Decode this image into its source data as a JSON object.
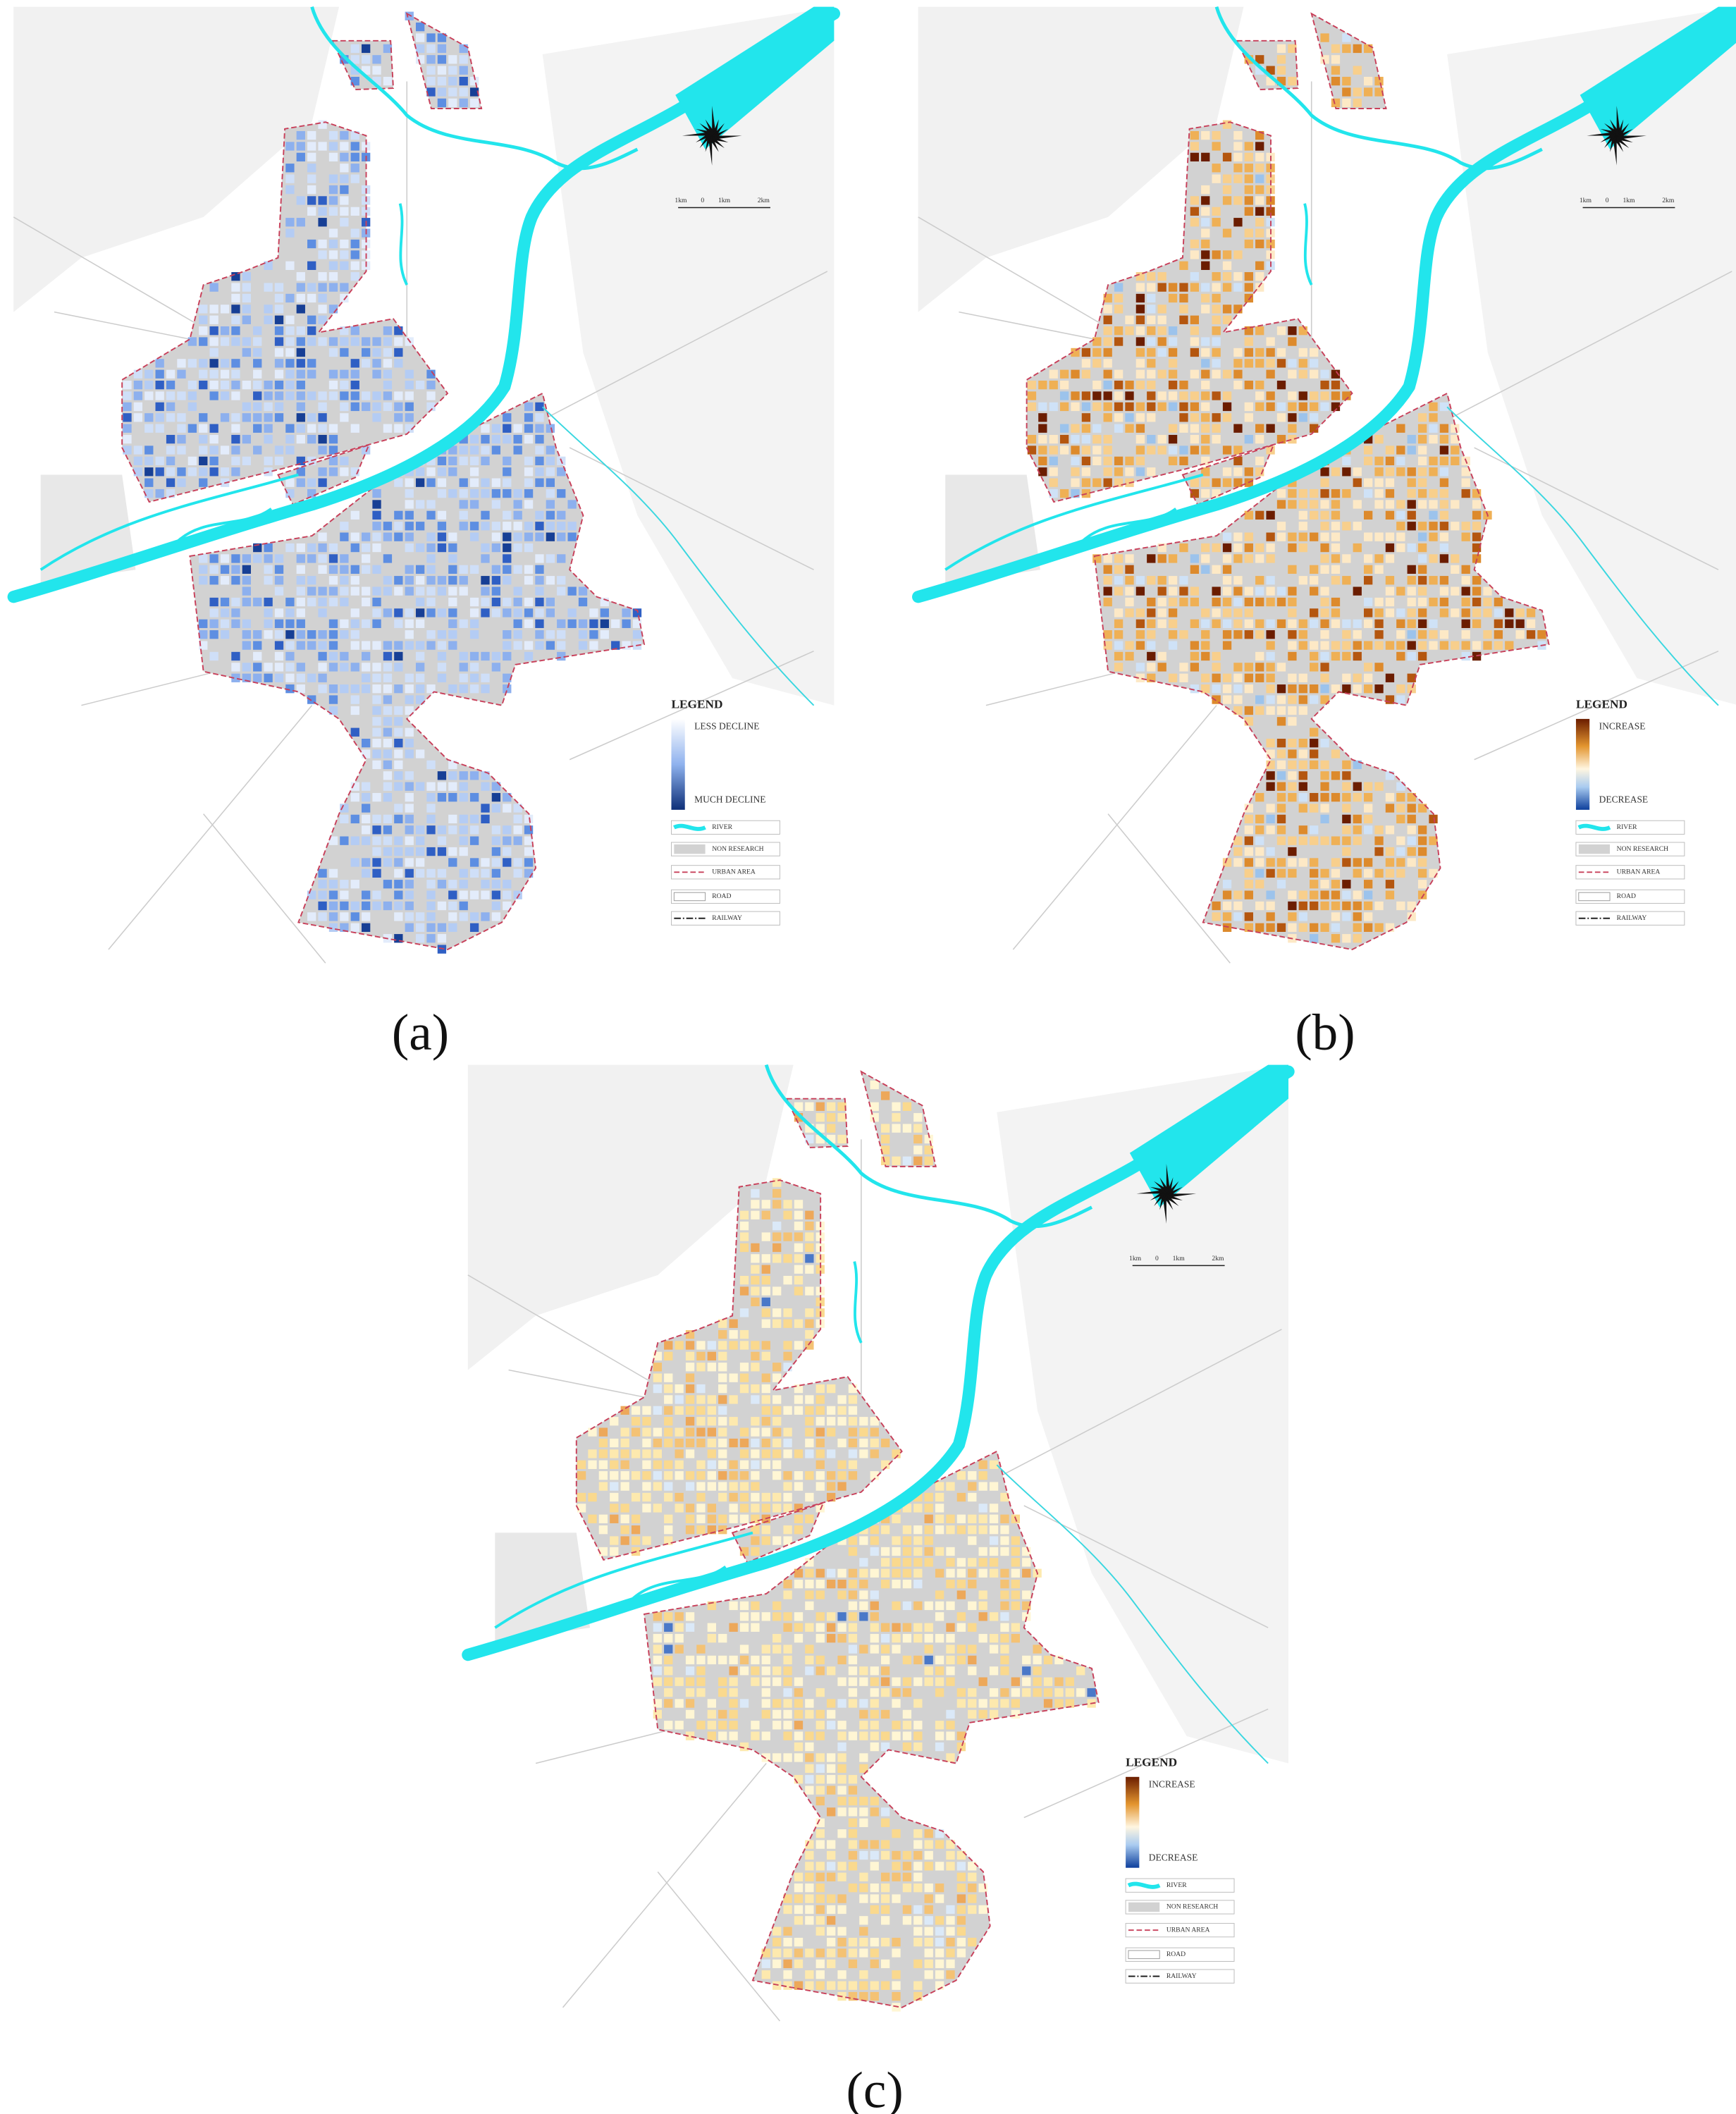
{
  "panels": [
    {
      "label": "(a)",
      "legend": {
        "title": "LEGEND",
        "gradient_top": "LESS DECLINE",
        "gradient_bottom": "MUCH DECLINE",
        "items": [
          "RIVER",
          "NON RESEARCH",
          "URBAN AREA",
          "ROAD",
          "RAILWAY"
        ]
      },
      "scale_bar": [
        "1km",
        "0",
        "1km",
        "2km"
      ]
    },
    {
      "label": "(b)",
      "legend": {
        "title": "LEGEND",
        "gradient_top": "INCREASE",
        "gradient_bottom": "DECREASE",
        "items": [
          "RIVER",
          "NON RESEARCH",
          "URBAN AREA",
          "ROAD",
          "RAILWAY"
        ]
      },
      "scale_bar": [
        "1km",
        "0",
        "1km",
        "2km"
      ]
    },
    {
      "label": "(c)",
      "legend": {
        "title": "LEGEND",
        "gradient_top": "INCREASE",
        "gradient_bottom": "DECREASE",
        "items": [
          "RIVER",
          "NON RESEARCH",
          "URBAN AREA",
          "ROAD",
          "RAILWAY"
        ]
      },
      "scale_bar": [
        "1km",
        "0",
        "1km",
        "2km"
      ]
    }
  ]
}
